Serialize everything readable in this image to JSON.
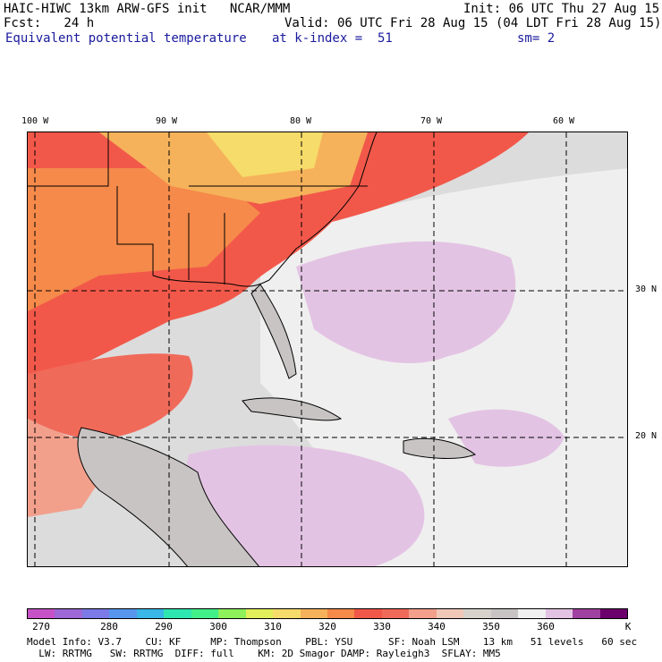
{
  "header": {
    "line1_left": "HAIC-HIWC 13km ARW-GFS init   NCAR/MMM",
    "line1_right": "Init: 06 UTC Thu 27 Aug 15",
    "line2_left": "Fcst:   24 h",
    "line2_right": "Valid: 06 UTC Fri 28 Aug 15 (04 LDT Fri 28 Aug 15)",
    "line3_left": "Equivalent potential temperature",
    "line3_mid": "at k-index =  51",
    "line3_right": "sm= 2"
  },
  "map": {
    "lon_labels": [
      "100 W",
      "90 W",
      "80 W",
      "70 W",
      "60 W"
    ],
    "lat_labels": [
      "30 N",
      "20 N"
    ]
  },
  "colorbar": {
    "colors": [
      "#c752c7",
      "#9e68d6",
      "#7b7ae6",
      "#5896ee",
      "#3ab7e6",
      "#2ee6b0",
      "#42f08a",
      "#8ef05a",
      "#e0ef5a",
      "#f6dc6a",
      "#f6b25a",
      "#f58a4a",
      "#f2584a",
      "#f06a5a",
      "#f2a08c",
      "#f0c8b8",
      "#d8d2cc",
      "#c8c4c4",
      "#f0f0f0",
      "#e3c3e3",
      "#a040a0",
      "#6c006c"
    ],
    "ticks": [
      "270",
      "280",
      "290",
      "300",
      "310",
      "320",
      "330",
      "340",
      "350",
      "360",
      "K"
    ]
  },
  "footer": {
    "line1": "Model Info: V3.7    CU: KF     MP: Thompson    PBL: YSU      SF: Noah LSM    13 km   51 levels   60 sec",
    "line2": "  LW: RRTMG   SW: RRTMG  DIFF: full    KM: 2D Smagor DAMP: Rayleigh3  SFLAY: MM5"
  }
}
